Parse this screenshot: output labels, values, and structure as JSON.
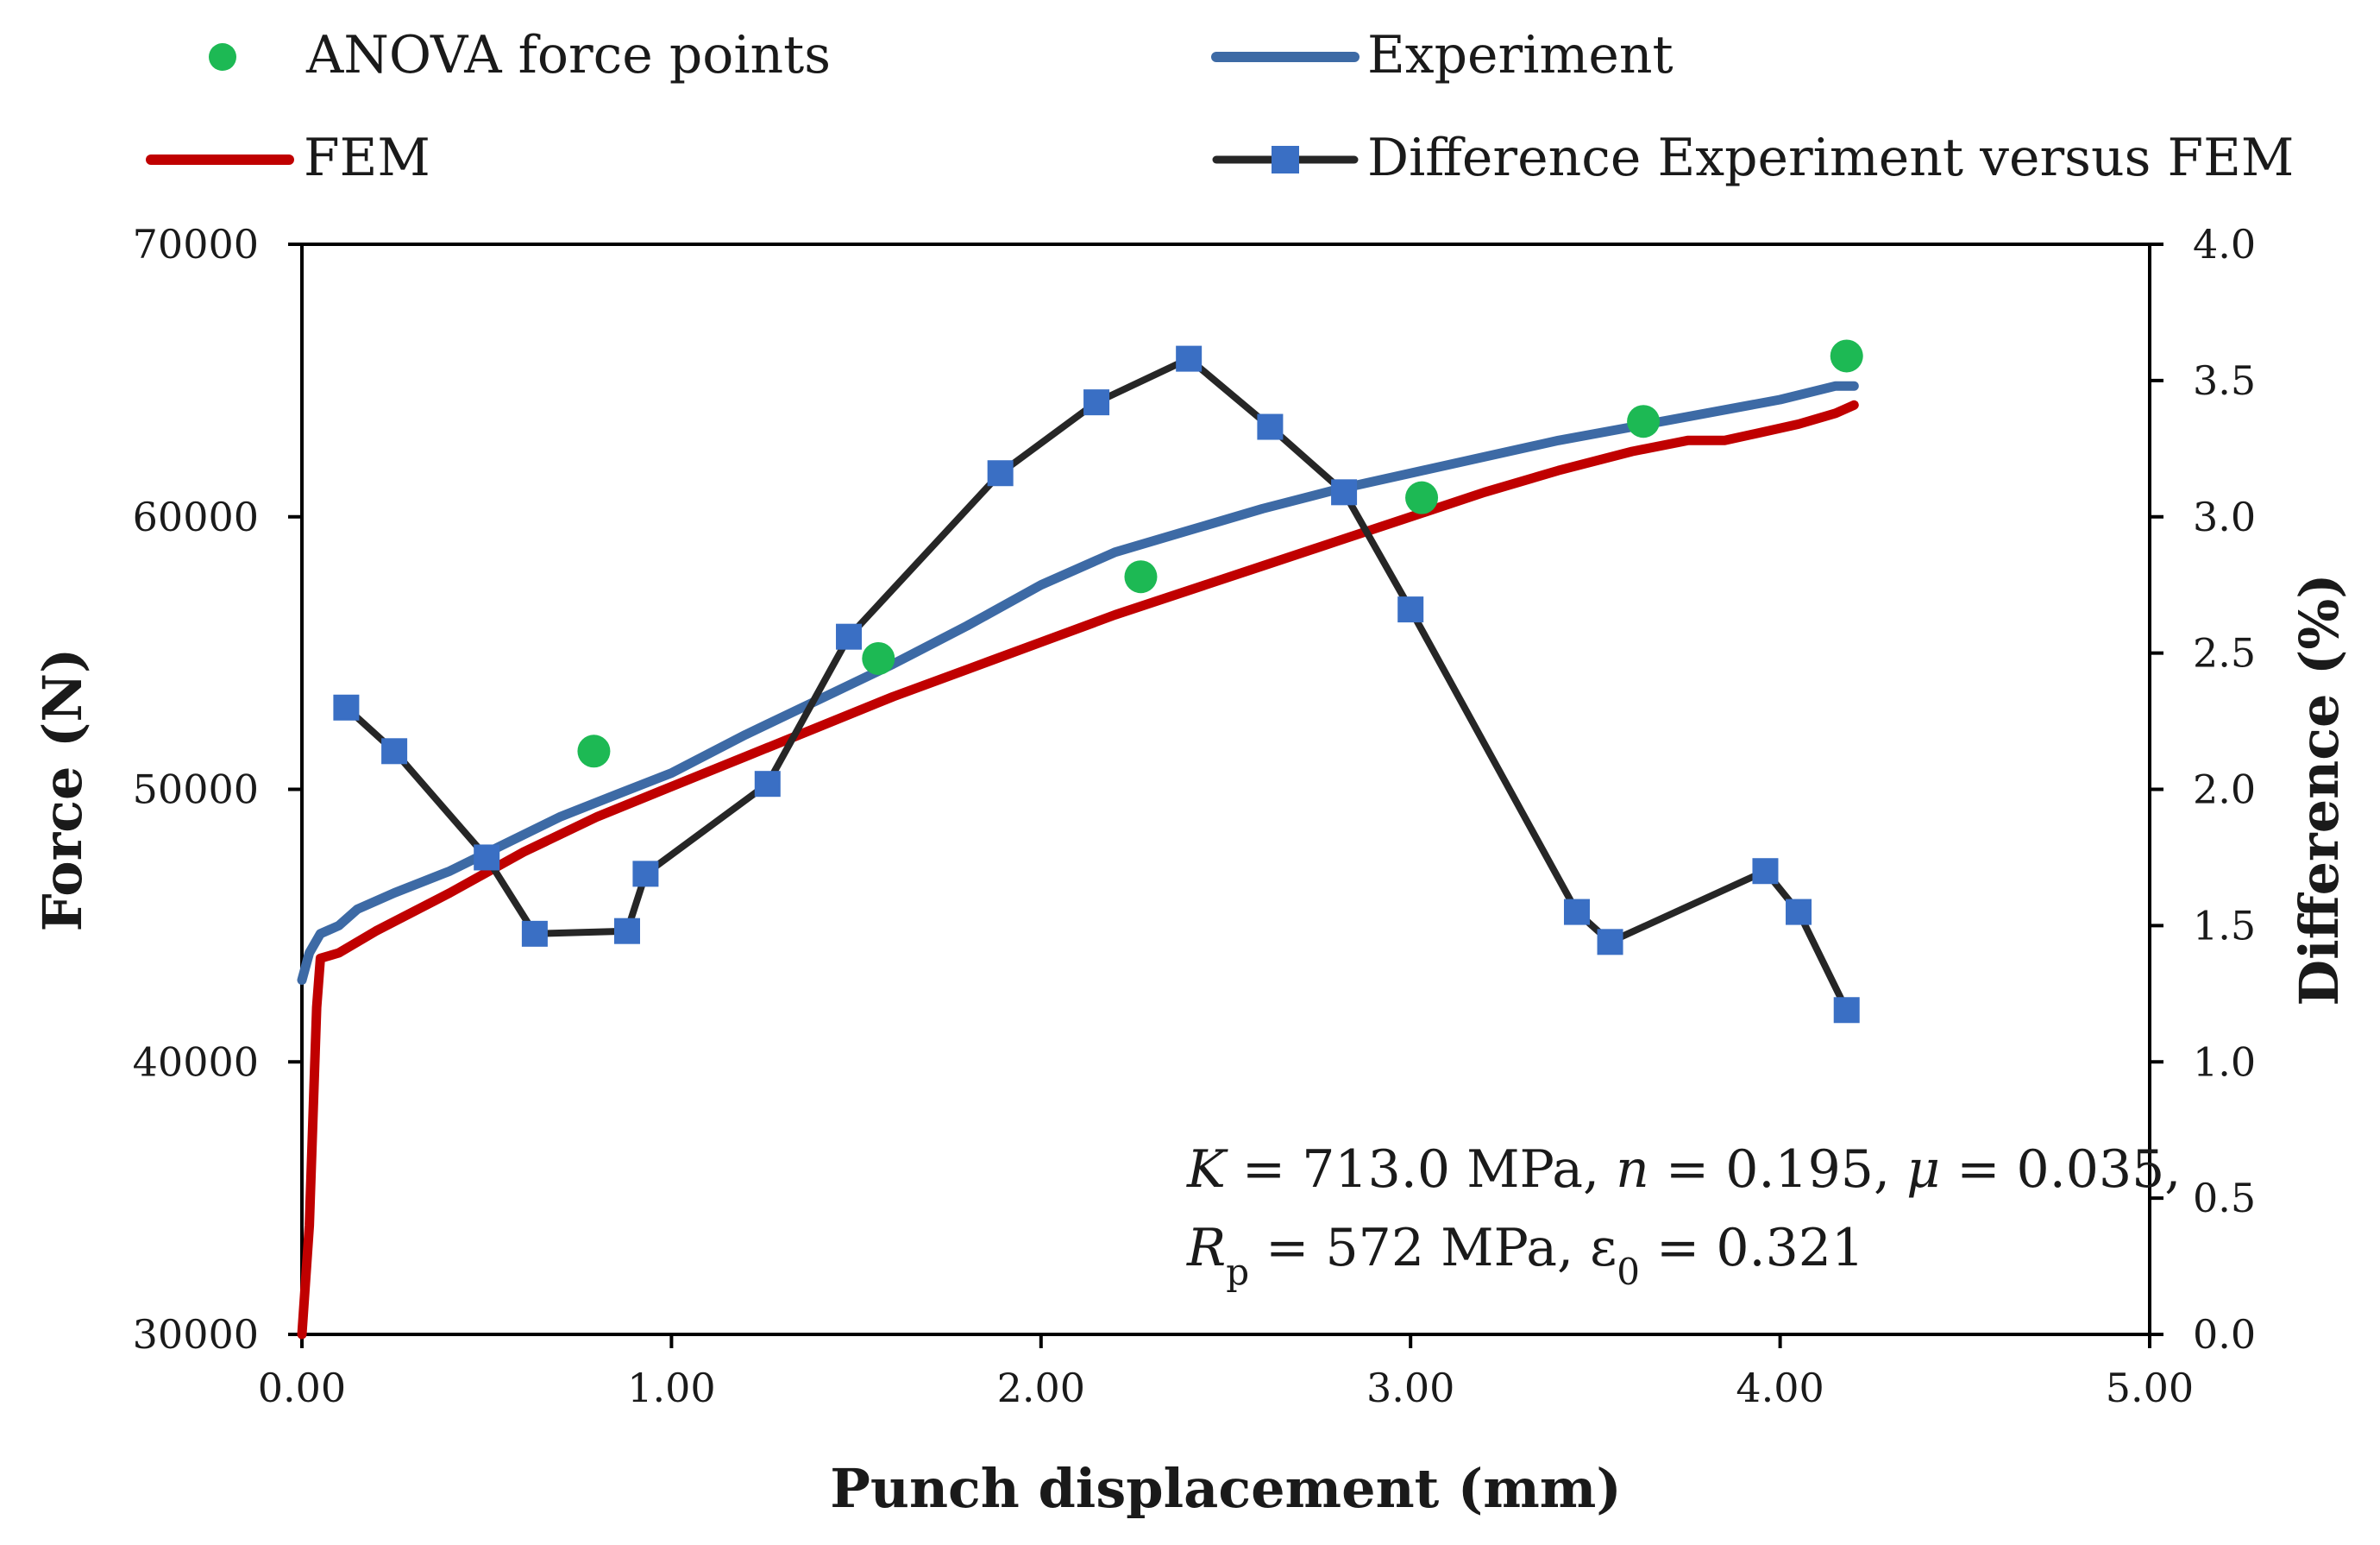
{
  "chart_data": {
    "type": "line",
    "x_axis": {
      "label": "Punch displacement (mm)",
      "range": [
        0,
        5
      ],
      "ticks": [
        0,
        1,
        2,
        3,
        4,
        5
      ],
      "tick_labels": [
        "0.00",
        "1.00",
        "2.00",
        "3.00",
        "4.00",
        "5.00"
      ]
    },
    "y_axis_left": {
      "label": "Force (N)",
      "range": [
        30000,
        70000
      ],
      "ticks": [
        30000,
        40000,
        50000,
        60000,
        70000
      ],
      "tick_labels": [
        "30000",
        "40000",
        "50000",
        "60000",
        "70000"
      ]
    },
    "y_axis_right": {
      "label": "Difference (%)",
      "range": [
        0,
        4
      ],
      "ticks": [
        0,
        0.5,
        1,
        1.5,
        2,
        2.5,
        3,
        3.5,
        4
      ],
      "tick_labels": [
        "0.0",
        "0.5",
        "1.0",
        "1.5",
        "2.0",
        "2.5",
        "3.0",
        "3.5",
        "4.0"
      ]
    },
    "legend": {
      "position": "top",
      "entries": [
        {
          "label": "ANOVA force points",
          "marker": "circle",
          "color": "#1db954"
        },
        {
          "label": "Experiment",
          "marker": "line",
          "color": "#3d6aa5"
        },
        {
          "label": "FEM",
          "marker": "line",
          "color": "#c00000"
        },
        {
          "label": "Difference Experiment versus FEM",
          "marker": "line-square",
          "color": "#262626",
          "marker_color": "#3a6fc4"
        }
      ]
    },
    "annotation": {
      "line1": {
        "K_sym": "K",
        "K_val": " = 713.0 MPa, ",
        "n_sym": "n",
        "n_val": " = 0.195, ",
        "mu_sym": "μ",
        "mu_val": " = 0.035,"
      },
      "line2": {
        "R_sym": "R",
        "R_sub": "p",
        "R_val": " = 572 MPa, ε",
        "eps_sub": "0",
        "eps_val": " = 0.321"
      }
    },
    "series": [
      {
        "name": "Experiment",
        "axis": "left",
        "color": "#3d6aa5",
        "x": [
          0.0,
          0.02,
          0.05,
          0.1,
          0.15,
          0.25,
          0.4,
          0.55,
          0.7,
          0.85,
          1.0,
          1.2,
          1.4,
          1.6,
          1.8,
          2.0,
          2.2,
          2.4,
          2.6,
          2.8,
          3.0,
          3.2,
          3.4,
          3.6,
          3.8,
          4.0,
          4.15,
          4.2
        ],
        "y": [
          43000,
          44000,
          44700,
          45000,
          45600,
          46200,
          47000,
          48000,
          49000,
          49800,
          50600,
          52000,
          53300,
          54600,
          56000,
          57500,
          58700,
          59500,
          60300,
          61000,
          61600,
          62200,
          62800,
          63300,
          63800,
          64300,
          64800,
          64800
        ]
      },
      {
        "name": "FEM",
        "axis": "left",
        "color": "#c00000",
        "x": [
          0.0,
          0.02,
          0.04,
          0.05,
          0.1,
          0.2,
          0.4,
          0.6,
          0.8,
          1.0,
          1.2,
          1.4,
          1.6,
          1.8,
          2.0,
          2.2,
          2.4,
          2.6,
          2.8,
          3.0,
          3.2,
          3.4,
          3.6,
          3.75,
          3.85,
          3.95,
          4.05,
          4.15,
          4.2
        ],
        "y": [
          30000,
          34000,
          42000,
          43800,
          44000,
          44800,
          46200,
          47700,
          49000,
          50100,
          51200,
          52300,
          53400,
          54400,
          55400,
          56400,
          57300,
          58200,
          59100,
          60000,
          60900,
          61700,
          62400,
          62800,
          62800,
          63100,
          63400,
          63800,
          64100
        ]
      },
      {
        "name": "Difference Experiment versus FEM",
        "axis": "right",
        "color": "#262626",
        "marker_color": "#3a6fc4",
        "x": [
          0.12,
          0.25,
          0.5,
          0.63,
          0.88,
          0.93,
          1.26,
          1.48,
          1.89,
          2.15,
          2.4,
          2.62,
          2.82,
          3.0,
          3.45,
          3.54,
          3.96,
          4.05,
          4.18
        ],
        "y": [
          2.3,
          2.14,
          1.75,
          1.47,
          1.48,
          1.69,
          2.02,
          2.56,
          3.16,
          3.42,
          3.58,
          3.33,
          3.09,
          2.66,
          1.55,
          1.44,
          1.7,
          1.55,
          1.19
        ]
      },
      {
        "name": "ANOVA force points",
        "axis": "left",
        "type": "scatter",
        "color": "#1db954",
        "x": [
          0.79,
          1.56,
          2.27,
          3.03,
          3.63,
          4.18
        ],
        "y": [
          51400,
          54800,
          57800,
          60700,
          63500,
          65900
        ]
      }
    ]
  }
}
